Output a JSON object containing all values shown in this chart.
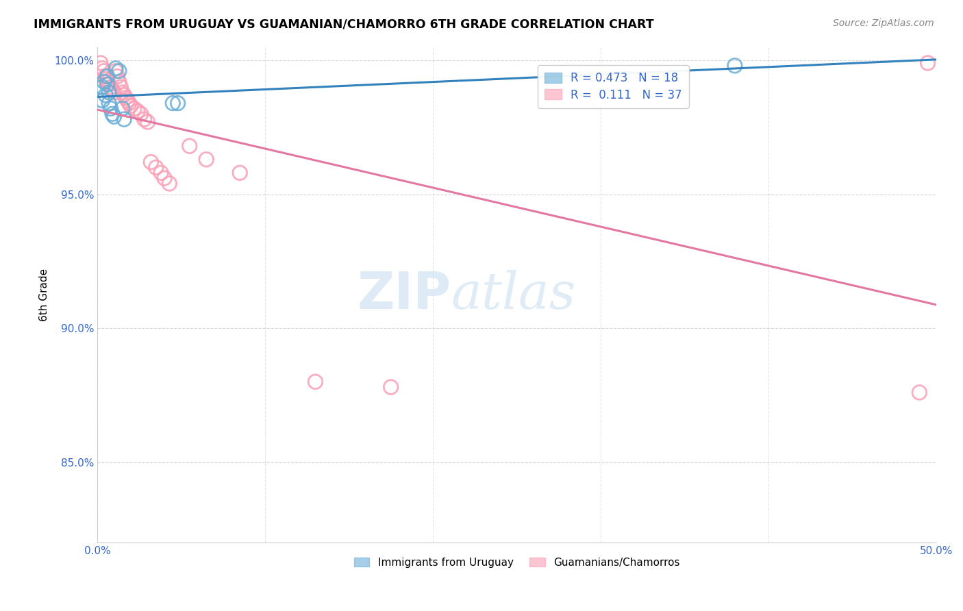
{
  "title": "IMMIGRANTS FROM URUGUAY VS GUAMANIAN/CHAMORRO 6TH GRADE CORRELATION CHART",
  "source": "Source: ZipAtlas.com",
  "ylabel": "6th Grade",
  "xlim": [
    0.0,
    0.5
  ],
  "ylim": [
    0.82,
    1.005
  ],
  "xticks": [
    0.0,
    0.1,
    0.2,
    0.3,
    0.4,
    0.5
  ],
  "xticklabels": [
    "0.0%",
    "",
    "",
    "",
    "",
    "50.0%"
  ],
  "yticks": [
    0.85,
    0.9,
    0.95,
    1.0
  ],
  "yticklabels": [
    "85.0%",
    "90.0%",
    "95.0%",
    "100.0%"
  ],
  "legend_r_uruguay": "R = 0.473",
  "legend_n_uruguay": "N = 18",
  "legend_r_guam": "R =  0.111",
  "legend_n_guam": "N = 37",
  "uruguay_color": "#6baed6",
  "guam_color": "#fa9fb5",
  "uruguay_line_color": "#3182bd",
  "guam_line_color": "#e377a2",
  "uruguay_x": [
    0.003,
    0.003,
    0.004,
    0.005,
    0.006,
    0.006,
    0.007,
    0.007,
    0.008,
    0.009,
    0.01,
    0.011,
    0.013,
    0.015,
    0.016,
    0.045,
    0.048,
    0.38
  ],
  "uruguay_y": [
    0.99,
    0.985,
    0.992,
    0.987,
    0.994,
    0.991,
    0.988,
    0.984,
    0.982,
    0.98,
    0.979,
    0.997,
    0.996,
    0.982,
    0.978,
    0.984,
    0.984,
    0.998
  ],
  "guam_x": [
    0.002,
    0.003,
    0.004,
    0.005,
    0.005,
    0.006,
    0.007,
    0.008,
    0.009,
    0.01,
    0.011,
    0.012,
    0.013,
    0.014,
    0.015,
    0.016,
    0.017,
    0.018,
    0.019,
    0.02,
    0.022,
    0.024,
    0.026,
    0.028,
    0.03,
    0.032,
    0.035,
    0.038,
    0.04,
    0.043,
    0.055,
    0.065,
    0.085,
    0.13,
    0.175,
    0.495,
    0.49
  ],
  "guam_y": [
    0.999,
    0.997,
    0.996,
    0.994,
    0.993,
    0.992,
    0.991,
    0.99,
    0.989,
    0.988,
    0.996,
    0.994,
    0.992,
    0.99,
    0.988,
    0.987,
    0.986,
    0.985,
    0.984,
    0.983,
    0.982,
    0.981,
    0.98,
    0.978,
    0.977,
    0.962,
    0.96,
    0.958,
    0.956,
    0.954,
    0.968,
    0.963,
    0.958,
    0.88,
    0.878,
    0.999,
    0.876
  ]
}
